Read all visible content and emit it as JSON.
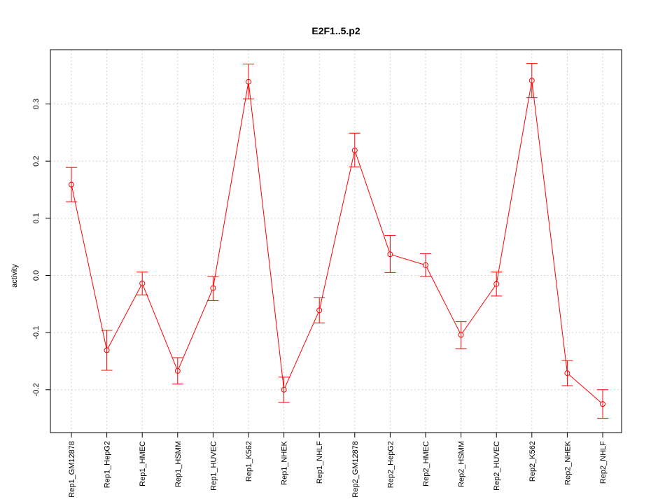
{
  "chart_data": {
    "type": "line",
    "title": "E2F1..5.p2",
    "xlabel": "",
    "ylabel": "activity",
    "ylim": [
      -0.275,
      0.395
    ],
    "yticks": [
      -0.2,
      -0.1,
      0.0,
      0.1,
      0.2,
      0.3
    ],
    "ytick_labels": [
      "-0.2",
      "-0.1",
      "0.0",
      "0.1",
      "0.2",
      "0.3"
    ],
    "grid": true,
    "series_color": "#ff0000",
    "categories": [
      "Rep1_GM12878",
      "Rep1_HepG2",
      "Rep1_HMEC",
      "Rep1_HSMM",
      "Rep1_HUVEC",
      "Rep1_K562",
      "Rep1_NHEK",
      "Rep1_NHLF",
      "Rep2_GM12878",
      "Rep2_HepG2",
      "Rep2_HMEC",
      "Rep2_HSMM",
      "Rep2_HUVEC",
      "Rep2_K562",
      "Rep2_NHEK",
      "Rep2_NHLF"
    ],
    "values": [
      0.159,
      -0.131,
      -0.014,
      -0.167,
      -0.022,
      0.339,
      -0.2,
      -0.061,
      0.219,
      0.037,
      0.018,
      -0.104,
      -0.015,
      0.341,
      -0.171,
      -0.225
    ],
    "err_upper": [
      0.189,
      -0.096,
      0.006,
      -0.144,
      -0.002,
      0.37,
      -0.178,
      -0.039,
      0.249,
      0.07,
      0.038,
      -0.081,
      0.006,
      0.371,
      -0.149,
      -0.2
    ],
    "err_lower": [
      0.129,
      -0.166,
      -0.034,
      -0.19,
      -0.044,
      0.309,
      -0.222,
      -0.083,
      0.19,
      0.005,
      -0.002,
      -0.128,
      -0.036,
      0.311,
      -0.193,
      -0.25
    ],
    "segments": [
      [
        0,
        1
      ],
      [
        1,
        2
      ],
      [
        2,
        3
      ],
      [
        3,
        4
      ],
      [
        4,
        5
      ],
      [
        5,
        6
      ],
      [
        6,
        7
      ],
      [
        7,
        8
      ],
      [
        8,
        9
      ],
      [
        9,
        10
      ],
      [
        10,
        11
      ],
      [
        11,
        12
      ],
      [
        12,
        13
      ],
      [
        13,
        14
      ],
      [
        14,
        15
      ]
    ]
  }
}
